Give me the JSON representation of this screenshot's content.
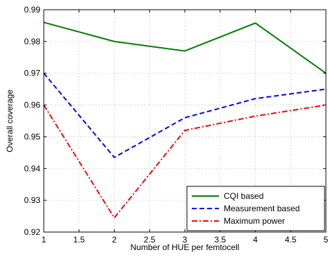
{
  "chart_data": {
    "type": "line",
    "xlabel": "Number of HUE per femtocell",
    "ylabel": "Overall coverage",
    "xlim": [
      1,
      5
    ],
    "ylim": [
      0.92,
      0.99
    ],
    "x_ticks": [
      1,
      1.5,
      2,
      2.5,
      3,
      3.5,
      4,
      4.5,
      5
    ],
    "x_tick_labels": [
      "1",
      "1.5",
      "2",
      "2.5",
      "3",
      "3.5",
      "4",
      "4.5",
      "5"
    ],
    "y_ticks": [
      0.92,
      0.93,
      0.94,
      0.95,
      0.96,
      0.97,
      0.98,
      0.99
    ],
    "y_tick_labels": [
      "0.92",
      "0.93",
      "0.94",
      "0.95",
      "0.96",
      "0.97",
      "0.98",
      "0.99"
    ],
    "grid": true,
    "legend_position": "bottom-right",
    "x": [
      1,
      2,
      3,
      4,
      5
    ],
    "series": [
      {
        "name": "CQI based",
        "values": [
          0.986,
          0.98,
          0.977,
          0.9858,
          0.97
        ],
        "color": "#008000",
        "dash": "solid"
      },
      {
        "name": "Measurement based",
        "values": [
          0.97,
          0.9435,
          0.956,
          0.962,
          0.965
        ],
        "color": "#0000ff",
        "dash": "dashed"
      },
      {
        "name": "Maximum power",
        "values": [
          0.96,
          0.9245,
          0.952,
          0.9565,
          0.96
        ],
        "color": "#ff0000",
        "dash": "dashdot"
      }
    ]
  }
}
